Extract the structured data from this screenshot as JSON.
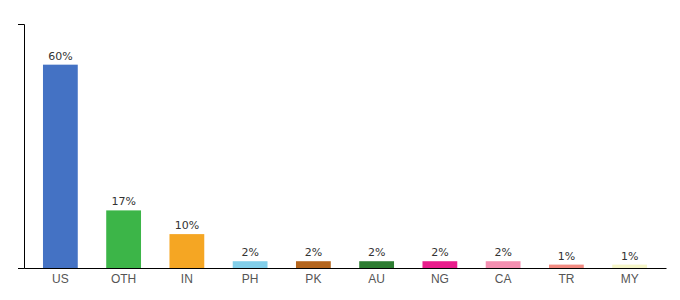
{
  "chart_data": {
    "type": "bar",
    "categories": [
      "US",
      "OTH",
      "IN",
      "PH",
      "PK",
      "AU",
      "NG",
      "CA",
      "TR",
      "MY"
    ],
    "values": [
      60,
      17,
      10,
      2,
      2,
      2,
      2,
      2,
      1,
      1
    ],
    "value_labels": [
      "60%",
      "17%",
      "10%",
      "2%",
      "2%",
      "2%",
      "2%",
      "2%",
      "1%",
      "1%"
    ],
    "colors": [
      "#4472C4",
      "#3CB548",
      "#F5A623",
      "#82CFEA",
      "#B5651D",
      "#2E7D32",
      "#E91E8C",
      "#F48FB1",
      "#F28B82",
      "#F5F5C8"
    ],
    "ylim": [
      0,
      72
    ],
    "grid": false,
    "data_labels": true,
    "tick_labels": "x"
  }
}
